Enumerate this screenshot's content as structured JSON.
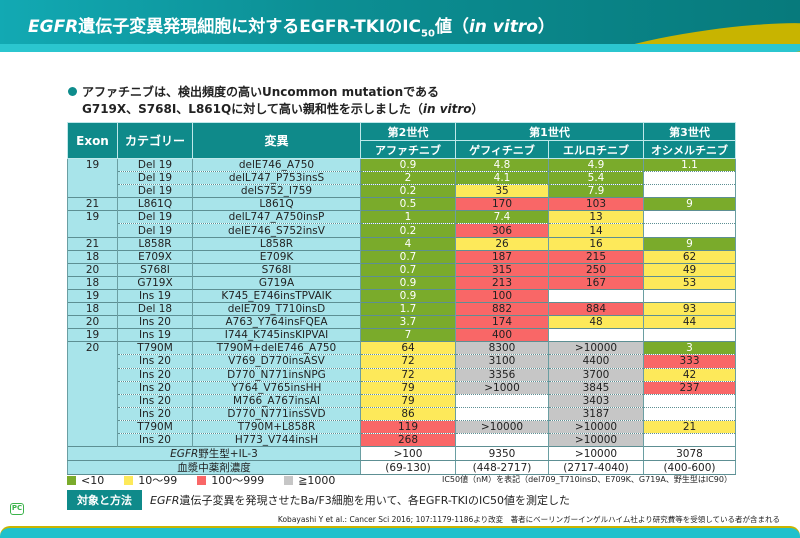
{
  "title": {
    "prefix": "EGFR",
    "main": "遺伝子変異発現細胞に対するEGFR-TKIのIC",
    "sub": "50",
    "suffix": "値（",
    "italic": "in vitro",
    "close": "）"
  },
  "bullet": {
    "line1": "アファチニブは、検出頻度の高いUncommon mutationである",
    "line2": "G719X、S768I、L861Qに対して高い親和性を示しました（",
    "italic": "in vitro",
    "close": "）"
  },
  "table": {
    "headers": {
      "exon": "Exon",
      "category": "カテゴリー",
      "mutation": "変異",
      "gen2": "第2世代",
      "gen1": "第1世代",
      "gen3": "第3世代",
      "drugs": [
        "アファチニブ",
        "ゲフィチニブ",
        "エルロチニブ",
        "オシメルチニブ"
      ]
    },
    "rows": [
      {
        "exon": "19",
        "cat": "Del 19",
        "mut": "delE746_A750",
        "v": [
          [
            "0.9",
            "g"
          ],
          [
            "4.8",
            "g"
          ],
          [
            "4.9",
            "g"
          ],
          [
            "1.1",
            "g"
          ]
        ]
      },
      {
        "exon": "",
        "cat": "Del 19",
        "mut": "delL747_P753insS",
        "v": [
          [
            "2",
            "g"
          ],
          [
            "4.1",
            "g"
          ],
          [
            "5.4",
            "g"
          ],
          [
            "",
            "w"
          ]
        ]
      },
      {
        "exon": "",
        "cat": "Del 19",
        "mut": "delS752_I759",
        "v": [
          [
            "0.2",
            "g"
          ],
          [
            "35",
            "y"
          ],
          [
            "7.9",
            "g"
          ],
          [
            "",
            "w"
          ]
        ]
      },
      {
        "exon": "21",
        "cat": "L861Q",
        "mut": "L861Q",
        "v": [
          [
            "0.5",
            "g"
          ],
          [
            "170",
            "r"
          ],
          [
            "103",
            "r"
          ],
          [
            "9",
            "g"
          ]
        ]
      },
      {
        "exon": "19",
        "cat": "Del 19",
        "mut": "delL747_A750insP",
        "v": [
          [
            "1",
            "g"
          ],
          [
            "7.4",
            "g"
          ],
          [
            "13",
            "y"
          ],
          [
            "",
            "w"
          ]
        ]
      },
      {
        "exon": "",
        "cat": "Del 19",
        "mut": "delE746_S752insV",
        "v": [
          [
            "0.2",
            "g"
          ],
          [
            "306",
            "r"
          ],
          [
            "14",
            "y"
          ],
          [
            "",
            "w"
          ]
        ]
      },
      {
        "exon": "21",
        "cat": "L858R",
        "mut": "L858R",
        "v": [
          [
            "4",
            "g"
          ],
          [
            "26",
            "y"
          ],
          [
            "16",
            "y"
          ],
          [
            "9",
            "g"
          ]
        ]
      },
      {
        "exon": "18",
        "cat": "E709X",
        "mut": "E709K",
        "v": [
          [
            "0.7",
            "g"
          ],
          [
            "187",
            "r"
          ],
          [
            "215",
            "r"
          ],
          [
            "62",
            "y"
          ]
        ]
      },
      {
        "exon": "20",
        "cat": "S768I",
        "mut": "S768I",
        "v": [
          [
            "0.7",
            "g"
          ],
          [
            "315",
            "r"
          ],
          [
            "250",
            "r"
          ],
          [
            "49",
            "y"
          ]
        ]
      },
      {
        "exon": "18",
        "cat": "G719X",
        "mut": "G719A",
        "v": [
          [
            "0.9",
            "g"
          ],
          [
            "213",
            "r"
          ],
          [
            "167",
            "r"
          ],
          [
            "53",
            "y"
          ]
        ]
      },
      {
        "exon": "19",
        "cat": "Ins 19",
        "mut": "K745_E746insTPVAIK",
        "v": [
          [
            "0.9",
            "g"
          ],
          [
            "100",
            "r"
          ],
          [
            "",
            "w"
          ],
          [
            "",
            "w"
          ]
        ]
      },
      {
        "exon": "18",
        "cat": "Del 18",
        "mut": "delE709_T710insD",
        "v": [
          [
            "1.7",
            "g"
          ],
          [
            "882",
            "r"
          ],
          [
            "884",
            "r"
          ],
          [
            "93",
            "y"
          ]
        ]
      },
      {
        "exon": "20",
        "cat": "Ins 20",
        "mut": "A763_Y764insFQEA",
        "v": [
          [
            "3.7",
            "g"
          ],
          [
            "174",
            "r"
          ],
          [
            "48",
            "y"
          ],
          [
            "44",
            "y"
          ]
        ]
      },
      {
        "exon": "19",
        "cat": "Ins 19",
        "mut": "I744_K745insKIPVAI",
        "v": [
          [
            "7",
            "g"
          ],
          [
            "400",
            "r"
          ],
          [
            "",
            "w"
          ],
          [
            "",
            "w"
          ]
        ]
      },
      {
        "exon": "20",
        "cat": "T790M",
        "mut": "T790M+delE746_A750",
        "v": [
          [
            "64",
            "y"
          ],
          [
            "8300",
            "s"
          ],
          [
            ">10000",
            "s"
          ],
          [
            "3",
            "g"
          ]
        ]
      },
      {
        "exon": "",
        "cat": "Ins 20",
        "mut": "V769_D770insASV",
        "v": [
          [
            "72",
            "y"
          ],
          [
            "3100",
            "s"
          ],
          [
            "4400",
            "s"
          ],
          [
            "333",
            "r"
          ]
        ]
      },
      {
        "exon": "",
        "cat": "Ins 20",
        "mut": "D770_N771insNPG",
        "v": [
          [
            "72",
            "y"
          ],
          [
            "3356",
            "s"
          ],
          [
            "3700",
            "s"
          ],
          [
            "42",
            "y"
          ]
        ]
      },
      {
        "exon": "",
        "cat": "Ins 20",
        "mut": "Y764_V765insHH",
        "v": [
          [
            "79",
            "y"
          ],
          [
            ">1000",
            "s"
          ],
          [
            "3845",
            "s"
          ],
          [
            "237",
            "r"
          ]
        ]
      },
      {
        "exon": "",
        "cat": "Ins 20",
        "mut": "M766_A767insAI",
        "v": [
          [
            "79",
            "y"
          ],
          [
            "",
            "w"
          ],
          [
            "3403",
            "s"
          ],
          [
            "",
            "w"
          ]
        ]
      },
      {
        "exon": "",
        "cat": "Ins 20",
        "mut": "D770_N771insSVD",
        "v": [
          [
            "86",
            "y"
          ],
          [
            "",
            "w"
          ],
          [
            "3187",
            "s"
          ],
          [
            "",
            "w"
          ]
        ]
      },
      {
        "exon": "",
        "cat": "T790M",
        "mut": "T790M+L858R",
        "v": [
          [
            "119",
            "r"
          ],
          [
            ">10000",
            "s"
          ],
          [
            ">10000",
            "s"
          ],
          [
            "21",
            "y"
          ]
        ]
      },
      {
        "exon": "",
        "cat": "Ins 20",
        "mut": "H773_V744insH",
        "v": [
          [
            "268",
            "r"
          ],
          [
            "",
            "w"
          ],
          [
            ">10000",
            "s"
          ],
          [
            "",
            "w"
          ]
        ]
      }
    ],
    "wildtype": {
      "label_italic": "EGFR",
      "label": "野生型+IL-3",
      "values": [
        ">100",
        "9350",
        ">10000",
        "3078"
      ]
    },
    "plasma": {
      "label": "血漿中薬剤濃度",
      "values": [
        "(69-130)",
        "(448-2717)",
        "(2717-4040)",
        "(400-600)"
      ]
    }
  },
  "colors": {
    "g": "#7aab2b",
    "y": "#fde95a",
    "r": "#f96767",
    "s": "#c6c6c6",
    "accent": "#0f8a8a"
  },
  "legend": [
    {
      "label": "<10",
      "color": "#7aab2b"
    },
    {
      "label": "10～99",
      "color": "#fde95a"
    },
    {
      "label": "100～999",
      "color": "#f96767"
    },
    {
      "label": "≧1000",
      "color": "#c6c6c6"
    }
  ],
  "note": "IC50値（nM）を表記（del709_T710insD、E709K、G719A、野生型はIC90）",
  "method": {
    "tag": "対象と方法",
    "italic": "EGFR",
    "text": "遺伝子変異を発現させたBa/F3細胞を用いて、各EGFR-TKIのIC50値を測定した"
  },
  "logo": "PC",
  "citation": "Kobayashi Y et al.: Cancer Sci 2016; 107:1179-1186より改変　著者にベーリンガーインゲルハイム社より研究費等を受領している者が含まれる"
}
